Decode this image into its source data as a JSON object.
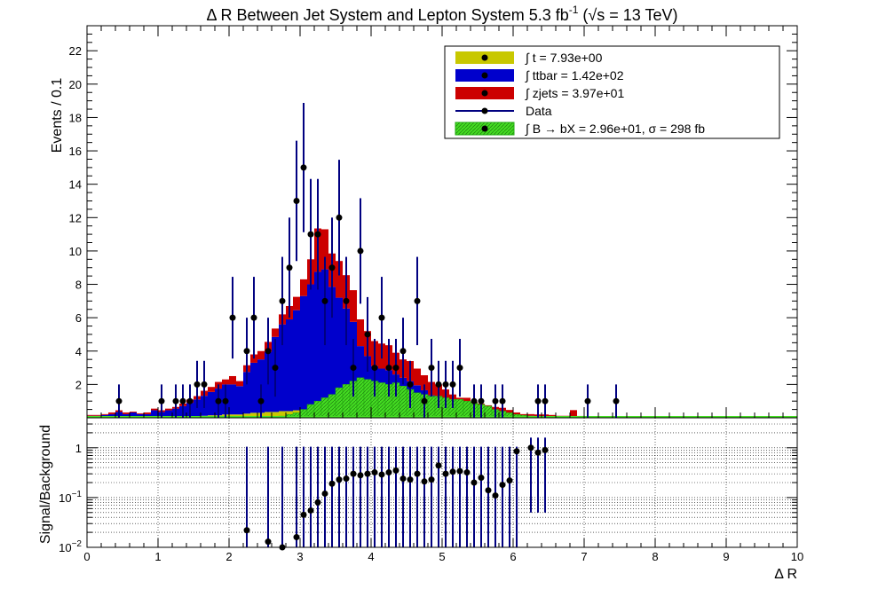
{
  "colors": {
    "t": "#c8c800",
    "ttbar": "#0000cc",
    "zjets": "#cc0000",
    "signal": "#44dd22",
    "data": "#000000",
    "error": "#000080"
  },
  "chart_data": [
    {
      "type": "bar",
      "title_main": "Δ R Between Jet System and Lepton System 5.3 fb",
      "title_sup": "-1",
      "title_energy": " (√s = 13 TeV)",
      "ylabel": "Events / 0.1",
      "xlim": [
        0,
        10
      ],
      "ylim": [
        0,
        23.5
      ],
      "yticks": [
        2,
        4,
        6,
        8,
        10,
        12,
        14,
        16,
        18,
        20,
        22
      ],
      "grid": false,
      "legend_position": "top-right",
      "legend": [
        {
          "key": "t",
          "label": "∫ t = 7.93e+00"
        },
        {
          "key": "ttbar",
          "label": "∫ ttbar = 1.42e+02"
        },
        {
          "key": "zjets",
          "label": "∫ zjets = 3.97e+01"
        },
        {
          "key": "data",
          "label": "Data"
        },
        {
          "key": "signal",
          "label": "∫ B → bX = 2.96e+01, σ = 298 fb"
        }
      ],
      "bin_width": 0.1,
      "x": [
        0.0,
        0.1,
        0.2,
        0.3,
        0.4,
        0.5,
        0.6,
        0.7,
        0.8,
        0.9,
        1.0,
        1.1,
        1.2,
        1.3,
        1.4,
        1.5,
        1.6,
        1.7,
        1.8,
        1.9,
        2.0,
        2.1,
        2.2,
        2.3,
        2.4,
        2.5,
        2.6,
        2.7,
        2.8,
        2.9,
        3.0,
        3.1,
        3.2,
        3.3,
        3.4,
        3.5,
        3.6,
        3.7,
        3.8,
        3.9,
        4.0,
        4.1,
        4.2,
        4.3,
        4.4,
        4.5,
        4.6,
        4.7,
        4.8,
        4.9,
        5.0,
        5.1,
        5.2,
        5.3,
        5.4,
        5.5,
        5.6,
        5.7,
        5.8,
        5.9,
        6.0,
        6.1,
        6.2,
        6.3,
        6.4,
        6.5,
        6.6,
        6.7,
        6.8,
        6.9,
        7.0,
        7.1,
        7.2,
        7.3,
        7.4,
        7.5,
        7.6,
        7.7,
        7.8,
        7.9,
        8.0,
        8.1,
        8.2,
        8.3,
        8.4,
        8.5,
        8.6,
        8.7,
        8.8,
        8.9,
        9.0,
        9.1,
        9.2,
        9.3,
        9.4,
        9.5,
        9.6,
        9.7,
        9.8,
        9.9
      ],
      "series": [
        {
          "name": "t",
          "key": "t",
          "values": [
            0.02,
            0.02,
            0.02,
            0.02,
            0.05,
            0.02,
            0.02,
            0.02,
            0.02,
            0.05,
            0.05,
            0.05,
            0.05,
            0.1,
            0.1,
            0.1,
            0.12,
            0.15,
            0.15,
            0.2,
            0.2,
            0.2,
            0.25,
            0.3,
            0.3,
            0.35,
            0.35,
            0.4,
            0.4,
            0.45,
            0.5,
            0.5,
            0.45,
            0.4,
            0.45,
            0.4,
            0.35,
            0.35,
            0.3,
            0.3,
            0.3,
            0.25,
            0.25,
            0.2,
            0.2,
            0.2,
            0.15,
            0.15,
            0.15,
            0.1,
            0.1,
            0.1,
            0.1,
            0.1,
            0.05,
            0.05,
            0.05,
            0.05,
            0.05,
            0.02,
            0.02,
            0.02,
            0.02,
            0.02,
            0.02,
            0.02,
            0.02,
            0.02,
            0.02,
            0.02,
            0.01,
            0.01,
            0.01,
            0.01,
            0.01,
            0.01,
            0.01,
            0.01,
            0.01,
            0.01,
            0,
            0,
            0,
            0,
            0,
            0,
            0,
            0,
            0,
            0,
            0,
            0,
            0,
            0,
            0,
            0,
            0,
            0,
            0,
            0
          ]
        },
        {
          "name": "ttbar",
          "key": "ttbar",
          "values": [
            0.1,
            0.1,
            0.15,
            0.2,
            0.3,
            0.2,
            0.3,
            0.2,
            0.2,
            0.4,
            0.3,
            0.4,
            0.5,
            0.6,
            0.8,
            1.0,
            1.2,
            1.4,
            1.6,
            1.8,
            1.8,
            1.7,
            2.5,
            3.0,
            3.2,
            3.6,
            4.5,
            5.2,
            5.5,
            6.0,
            6.8,
            7.5,
            8.3,
            8.5,
            7.4,
            6.8,
            6.2,
            5.4,
            4.0,
            3.4,
            2.8,
            2.7,
            2.6,
            2.4,
            2.2,
            2.0,
            1.8,
            1.5,
            1.2,
            1.1,
            0.9,
            0.7,
            0.6,
            0.6,
            0.5,
            0.4,
            0.4,
            0.3,
            0.3,
            0.25,
            0.15,
            0.1,
            0.1,
            0.08,
            0.08,
            0.05,
            0.05,
            0.05,
            0.04,
            0.04,
            0.03,
            0.03,
            0.03,
            0.02,
            0.02,
            0.02,
            0.02,
            0.02,
            0.02,
            0.02,
            0.01,
            0.01,
            0.01,
            0.01,
            0.01,
            0.01,
            0.01,
            0.01,
            0.01,
            0.01,
            0.01,
            0.01,
            0.01,
            0.01,
            0.01,
            0.01,
            0.01,
            0.01,
            0.01,
            0.01
          ]
        },
        {
          "name": "zjets",
          "key": "zjets",
          "values": [
            0.05,
            0.05,
            0.05,
            0.1,
            0.1,
            0.1,
            0.05,
            0.05,
            0.1,
            0.1,
            0.1,
            0.1,
            0.1,
            0.15,
            0.2,
            0.2,
            0.3,
            0.3,
            0.4,
            0.3,
            0.5,
            0.3,
            0.4,
            0.5,
            0.5,
            0.6,
            0.5,
            0.6,
            0.8,
            0.8,
            1.0,
            1.5,
            2.6,
            2.4,
            2.0,
            2.2,
            2.0,
            1.9,
            1.6,
            1.5,
            1.5,
            1.5,
            1.5,
            1.3,
            1.1,
            1.2,
            1.0,
            0.9,
            0.8,
            0.8,
            0.7,
            0.6,
            0.5,
            0.5,
            0.4,
            0.4,
            0.3,
            0.3,
            0.25,
            0.2,
            0.15,
            0.1,
            0.1,
            0.1,
            0.1,
            0.1,
            0.05,
            0.05,
            0.4,
            0.05,
            0.05,
            0.05,
            0.05,
            0.05,
            0.05,
            0.05,
            0.05,
            0.05,
            0.05,
            0.05,
            0.05,
            0.05,
            0.05,
            0.05,
            0.05,
            0.05,
            0.05,
            0.05,
            0.05,
            0.05,
            0.05,
            0.05,
            0.05,
            0.05,
            0.05,
            0.05,
            0.05,
            0.05,
            0.05,
            0.05
          ]
        },
        {
          "name": "∫ B → bX = 2.96e+01, σ = 298 fb",
          "key": "signal",
          "values": [
            0,
            0,
            0,
            0,
            0,
            0,
            0,
            0,
            0,
            0,
            0,
            0,
            0,
            0,
            0,
            0,
            0,
            0,
            0,
            0,
            0,
            0,
            0,
            0,
            0,
            0.02,
            0.05,
            0.1,
            0.2,
            0.3,
            0.5,
            0.8,
            1.0,
            1.2,
            1.4,
            1.8,
            2.0,
            2.2,
            2.4,
            2.3,
            2.2,
            2.1,
            2.0,
            2.1,
            1.9,
            1.7,
            1.5,
            1.4,
            1.3,
            1.3,
            1.2,
            1.1,
            1.1,
            1.0,
            0.9,
            0.8,
            0.7,
            0.5,
            0.4,
            0.3,
            0.2,
            0.15,
            0.1,
            0.05,
            0.05,
            0.05,
            0.02,
            0.02,
            0.02,
            0.02,
            0.02,
            0.02,
            0.02,
            0.02,
            0.02,
            0.02,
            0.02,
            0.02,
            0.02,
            0.02,
            0.02,
            0.02,
            0.02,
            0.02,
            0.02,
            0.02,
            0.02,
            0.02,
            0.02,
            0.02,
            0.02,
            0.02,
            0.02,
            0.02,
            0.02,
            0.02,
            0.02,
            0.02,
            0.02,
            0.02
          ]
        }
      ],
      "data_points": [
        {
          "x": 0.45,
          "y": 1
        },
        {
          "x": 1.05,
          "y": 1
        },
        {
          "x": 1.25,
          "y": 1
        },
        {
          "x": 1.35,
          "y": 1
        },
        {
          "x": 1.45,
          "y": 1
        },
        {
          "x": 1.55,
          "y": 2
        },
        {
          "x": 1.65,
          "y": 2
        },
        {
          "x": 1.85,
          "y": 1
        },
        {
          "x": 1.95,
          "y": 1
        },
        {
          "x": 2.05,
          "y": 6
        },
        {
          "x": 2.25,
          "y": 4
        },
        {
          "x": 2.35,
          "y": 6
        },
        {
          "x": 2.45,
          "y": 1
        },
        {
          "x": 2.55,
          "y": 4
        },
        {
          "x": 2.65,
          "y": 3
        },
        {
          "x": 2.75,
          "y": 7
        },
        {
          "x": 2.85,
          "y": 9
        },
        {
          "x": 2.95,
          "y": 13
        },
        {
          "x": 3.05,
          "y": 15
        },
        {
          "x": 3.15,
          "y": 11
        },
        {
          "x": 3.25,
          "y": 11
        },
        {
          "x": 3.35,
          "y": 7
        },
        {
          "x": 3.45,
          "y": 9
        },
        {
          "x": 3.55,
          "y": 12
        },
        {
          "x": 3.65,
          "y": 7
        },
        {
          "x": 3.75,
          "y": 3
        },
        {
          "x": 3.85,
          "y": 10
        },
        {
          "x": 3.95,
          "y": 5
        },
        {
          "x": 4.05,
          "y": 3
        },
        {
          "x": 4.15,
          "y": 6
        },
        {
          "x": 4.25,
          "y": 3
        },
        {
          "x": 4.35,
          "y": 3
        },
        {
          "x": 4.45,
          "y": 4
        },
        {
          "x": 4.55,
          "y": 2
        },
        {
          "x": 4.65,
          "y": 7
        },
        {
          "x": 4.75,
          "y": 1
        },
        {
          "x": 4.85,
          "y": 3
        },
        {
          "x": 4.95,
          "y": 2
        },
        {
          "x": 5.05,
          "y": 2
        },
        {
          "x": 5.15,
          "y": 2
        },
        {
          "x": 5.25,
          "y": 3
        },
        {
          "x": 5.45,
          "y": 1
        },
        {
          "x": 5.55,
          "y": 1
        },
        {
          "x": 5.75,
          "y": 1
        },
        {
          "x": 5.85,
          "y": 1
        },
        {
          "x": 6.35,
          "y": 1
        },
        {
          "x": 6.45,
          "y": 1
        },
        {
          "x": 7.05,
          "y": 1
        },
        {
          "x": 7.45,
          "y": 1
        }
      ]
    },
    {
      "type": "scatter",
      "ylabel": "Signal/Background",
      "xlabel": "Δ R",
      "xlim": [
        0,
        10
      ],
      "xticks": [
        0,
        1,
        2,
        3,
        4,
        5,
        6,
        7,
        8,
        9,
        10
      ],
      "ylog": true,
      "ylim": [
        0.01,
        4
      ],
      "yticks": [
        {
          "value": 0.01,
          "base": "10",
          "exp": "−2"
        },
        {
          "value": 0.1,
          "base": "10",
          "exp": "−1"
        },
        {
          "value": 1,
          "base": "1",
          "exp": ""
        }
      ],
      "grid": true,
      "points": [
        {
          "x": 2.25,
          "y": 0.022,
          "lo": 0.005,
          "hi": 1.05
        },
        {
          "x": 2.55,
          "y": 0.013,
          "lo": 0.005,
          "hi": 1.05
        },
        {
          "x": 2.75,
          "y": 0.01,
          "lo": 0.005,
          "hi": 1.05
        },
        {
          "x": 2.95,
          "y": 0.016,
          "lo": 0.005,
          "hi": 1.05
        },
        {
          "x": 3.05,
          "y": 0.045,
          "lo": 0.005,
          "hi": 1.05
        },
        {
          "x": 3.15,
          "y": 0.055,
          "lo": 0.005,
          "hi": 1.05
        },
        {
          "x": 3.25,
          "y": 0.08,
          "lo": 0.005,
          "hi": 1.05
        },
        {
          "x": 3.35,
          "y": 0.12,
          "lo": 0.005,
          "hi": 1.05
        },
        {
          "x": 3.45,
          "y": 0.19,
          "lo": 0.005,
          "hi": 1.05
        },
        {
          "x": 3.55,
          "y": 0.23,
          "lo": 0.005,
          "hi": 1.05
        },
        {
          "x": 3.65,
          "y": 0.24,
          "lo": 0.005,
          "hi": 1.05
        },
        {
          "x": 3.75,
          "y": 0.3,
          "lo": 0.005,
          "hi": 1.05
        },
        {
          "x": 3.85,
          "y": 0.28,
          "lo": 0.005,
          "hi": 1.05
        },
        {
          "x": 3.95,
          "y": 0.3,
          "lo": 0.005,
          "hi": 1.05
        },
        {
          "x": 4.05,
          "y": 0.32,
          "lo": 0.005,
          "hi": 1.05
        },
        {
          "x": 4.15,
          "y": 0.29,
          "lo": 0.005,
          "hi": 1.05
        },
        {
          "x": 4.25,
          "y": 0.32,
          "lo": 0.005,
          "hi": 1.05
        },
        {
          "x": 4.35,
          "y": 0.35,
          "lo": 0.005,
          "hi": 1.05
        },
        {
          "x": 4.45,
          "y": 0.24,
          "lo": 0.005,
          "hi": 1.05
        },
        {
          "x": 4.55,
          "y": 0.23,
          "lo": 0.005,
          "hi": 1.05
        },
        {
          "x": 4.65,
          "y": 0.3,
          "lo": 0.005,
          "hi": 1.05
        },
        {
          "x": 4.75,
          "y": 0.21,
          "lo": 0.005,
          "hi": 1.05
        },
        {
          "x": 4.85,
          "y": 0.23,
          "lo": 0.005,
          "hi": 1.05
        },
        {
          "x": 4.95,
          "y": 0.44,
          "lo": 0.005,
          "hi": 1.05
        },
        {
          "x": 5.05,
          "y": 0.3,
          "lo": 0.005,
          "hi": 1.05
        },
        {
          "x": 5.15,
          "y": 0.33,
          "lo": 0.005,
          "hi": 1.05
        },
        {
          "x": 5.25,
          "y": 0.34,
          "lo": 0.005,
          "hi": 1.05
        },
        {
          "x": 5.35,
          "y": 0.32,
          "lo": 0.005,
          "hi": 1.05
        },
        {
          "x": 5.45,
          "y": 0.2,
          "lo": 0.005,
          "hi": 1.05
        },
        {
          "x": 5.55,
          "y": 0.25,
          "lo": 0.005,
          "hi": 1.05
        },
        {
          "x": 5.65,
          "y": 0.14,
          "lo": 0.005,
          "hi": 1.05
        },
        {
          "x": 5.75,
          "y": 0.11,
          "lo": 0.005,
          "hi": 1.05
        },
        {
          "x": 5.85,
          "y": 0.18,
          "lo": 0.005,
          "hi": 1.05
        },
        {
          "x": 5.95,
          "y": 0.22,
          "lo": 0.005,
          "hi": 1.05
        },
        {
          "x": 6.05,
          "y": 0.85,
          "lo": 0.005,
          "hi": 1.05
        },
        {
          "x": 6.25,
          "y": 1.0,
          "lo": 0.05,
          "hi": 1.6
        },
        {
          "x": 6.35,
          "y": 0.8,
          "lo": 0.05,
          "hi": 1.6
        },
        {
          "x": 6.45,
          "y": 0.9,
          "lo": 0.05,
          "hi": 1.6
        }
      ]
    }
  ]
}
